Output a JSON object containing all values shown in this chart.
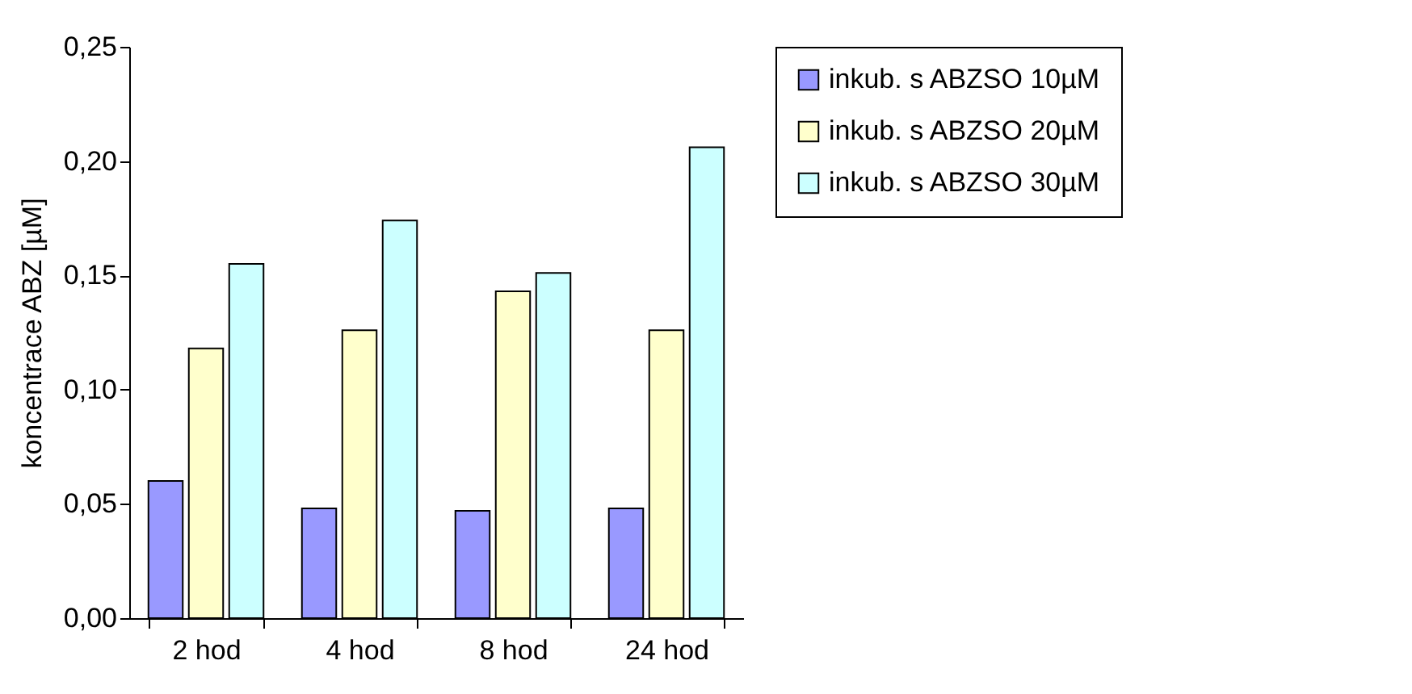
{
  "chart_data": {
    "type": "bar",
    "ylabel": "koncentrace ABZ [µM]",
    "categories": [
      "2 hod",
      "4 hod",
      "8 hod",
      "24 hod"
    ],
    "series": [
      {
        "name": "inkub. s ABZSO 10µM",
        "color": "#9999ff",
        "values": [
          0.06,
          0.048,
          0.047,
          0.048
        ]
      },
      {
        "name": "inkub. s ABZSO 20µM",
        "color": "#ffffcc",
        "values": [
          0.118,
          0.126,
          0.143,
          0.126
        ]
      },
      {
        "name": "inkub. s ABZSO 30µM",
        "color": "#ccffff",
        "values": [
          0.155,
          0.174,
          0.151,
          0.206
        ]
      }
    ],
    "ylim": [
      0,
      0.25
    ],
    "yticks": [
      {
        "value": 0,
        "label": "0,00"
      },
      {
        "value": 0.05,
        "label": "0,05"
      },
      {
        "value": 0.1,
        "label": "0,10"
      },
      {
        "value": 0.15,
        "label": "0,15"
      },
      {
        "value": 0.2,
        "label": "0,20"
      },
      {
        "value": 0.25,
        "label": "0,25"
      }
    ],
    "legend": "right"
  }
}
